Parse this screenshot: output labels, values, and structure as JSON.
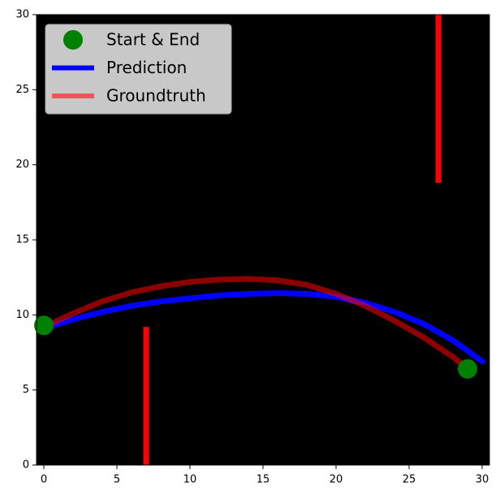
{
  "chart_data": {
    "type": "line",
    "xlim": [
      -0.5,
      30.5
    ],
    "ylim": [
      0,
      30
    ],
    "xticks": [
      0,
      5,
      10,
      15,
      20,
      25,
      30
    ],
    "yticks": [
      0,
      5,
      10,
      15,
      20,
      25,
      30
    ],
    "background": "#000000",
    "legend": "upper-left",
    "obstacles": {
      "color": "red",
      "items": [
        {
          "x": 7,
          "y": [
            0,
            9.2
          ]
        },
        {
          "x": 27,
          "y": [
            18.8,
            30
          ]
        }
      ]
    },
    "series": [
      {
        "name": "Start & End",
        "color": "green",
        "style": "marker",
        "x": [
          0,
          29
        ],
        "values": [
          9.3,
          6.4
        ]
      },
      {
        "name": "Prediction",
        "color": "blue",
        "style": "line",
        "x": [
          0,
          2,
          4,
          6,
          8,
          10,
          12,
          14,
          16,
          18,
          20,
          22,
          24,
          26,
          28,
          30
        ],
        "values": [
          9.1,
          9.7,
          10.2,
          10.6,
          10.9,
          11.1,
          11.3,
          11.4,
          11.45,
          11.4,
          11.2,
          10.8,
          10.2,
          9.4,
          8.3,
          6.9
        ]
      },
      {
        "name": "Groundtruth",
        "color": "red",
        "alpha": 0.55,
        "style": "line",
        "x": [
          0,
          2,
          4,
          6,
          8,
          10,
          12,
          14,
          16,
          18,
          20,
          22,
          24,
          26,
          28,
          29
        ],
        "values": [
          9.2,
          10.1,
          10.9,
          11.5,
          11.9,
          12.2,
          12.35,
          12.4,
          12.3,
          12.0,
          11.4,
          10.6,
          9.6,
          8.5,
          7.2,
          6.4
        ]
      }
    ]
  }
}
